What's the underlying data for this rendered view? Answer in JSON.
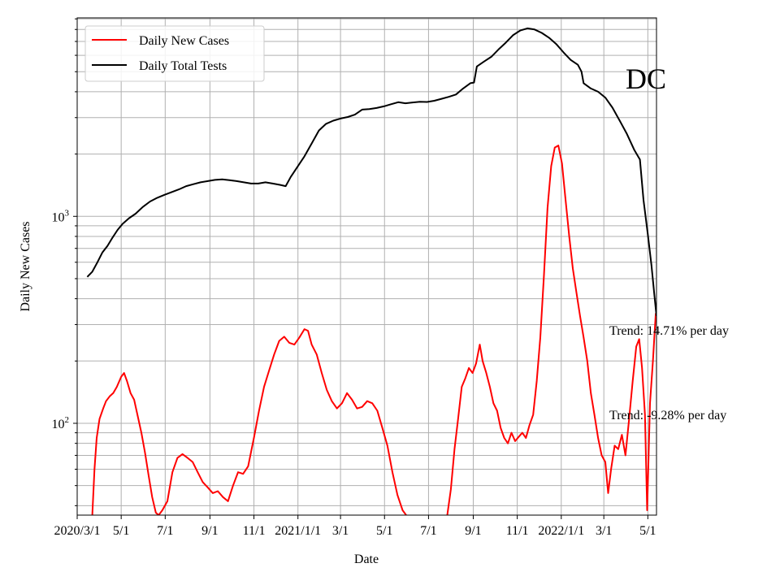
{
  "chart_data": {
    "type": "line",
    "title": "",
    "xlabel": "Date",
    "ylabel": "Daily New Cases",
    "yscale": "log",
    "grid": true,
    "legend_position": "top-left",
    "annotation": "DC",
    "trend_labels": [
      "Trend: 14.71% per day",
      "Trend: -9.28% per day"
    ],
    "x_ticks": [
      {
        "date": "2020-03-01",
        "label": "2020/3/1"
      },
      {
        "date": "2020-05-01",
        "label": "5/1"
      },
      {
        "date": "2020-07-01",
        "label": "7/1"
      },
      {
        "date": "2020-09-01",
        "label": "9/1"
      },
      {
        "date": "2020-11-01",
        "label": "11/1"
      },
      {
        "date": "2021-01-01",
        "label": "2021/1/1"
      },
      {
        "date": "2021-03-01",
        "label": "3/1"
      },
      {
        "date": "2021-05-01",
        "label": "5/1"
      },
      {
        "date": "2021-07-01",
        "label": "7/1"
      },
      {
        "date": "2021-09-01",
        "label": "9/1"
      },
      {
        "date": "2021-11-01",
        "label": "11/1"
      },
      {
        "date": "2022-01-01",
        "label": "2022/1/1"
      },
      {
        "date": "2022-03-01",
        "label": "3/1"
      },
      {
        "date": "2022-05-01",
        "label": "5/1"
      }
    ],
    "y_ticks": [
      {
        "value": 100,
        "base": "10",
        "exp": "2"
      },
      {
        "value": 1000,
        "base": "10",
        "exp": "3"
      }
    ],
    "xlim": [
      "2020-03-01",
      "2022-05-13"
    ],
    "ylim": [
      36,
      9100
    ],
    "series": [
      {
        "name": "Daily New Cases",
        "color": "#ff0000",
        "points": [
          [
            "2020-03-22",
            36
          ],
          [
            "2020-03-25",
            60
          ],
          [
            "2020-03-28",
            85
          ],
          [
            "2020-04-01",
            105
          ],
          [
            "2020-04-06",
            118
          ],
          [
            "2020-04-10",
            128
          ],
          [
            "2020-04-15",
            135
          ],
          [
            "2020-04-20",
            140
          ],
          [
            "2020-04-25",
            150
          ],
          [
            "2020-05-01",
            168
          ],
          [
            "2020-05-05",
            175
          ],
          [
            "2020-05-09",
            160
          ],
          [
            "2020-05-14",
            140
          ],
          [
            "2020-05-19",
            130
          ],
          [
            "2020-05-24",
            108
          ],
          [
            "2020-05-29",
            90
          ],
          [
            "2020-06-03",
            72
          ],
          [
            "2020-06-08",
            56
          ],
          [
            "2020-06-13",
            44
          ],
          [
            "2020-06-18",
            37
          ],
          [
            "2020-06-22",
            36
          ],
          [
            "2020-06-27",
            38
          ],
          [
            "2020-07-04",
            42
          ],
          [
            "2020-07-11",
            58
          ],
          [
            "2020-07-18",
            68
          ],
          [
            "2020-07-25",
            71
          ],
          [
            "2020-08-01",
            68
          ],
          [
            "2020-08-08",
            65
          ],
          [
            "2020-08-15",
            58
          ],
          [
            "2020-08-22",
            52
          ],
          [
            "2020-08-29",
            49
          ],
          [
            "2020-09-05",
            46
          ],
          [
            "2020-09-12",
            47
          ],
          [
            "2020-09-19",
            44
          ],
          [
            "2020-09-26",
            42
          ],
          [
            "2020-10-03",
            50
          ],
          [
            "2020-10-10",
            58
          ],
          [
            "2020-10-17",
            57
          ],
          [
            "2020-10-24",
            62
          ],
          [
            "2020-11-01",
            85
          ],
          [
            "2020-11-08",
            115
          ],
          [
            "2020-11-15",
            150
          ],
          [
            "2020-11-22",
            180
          ],
          [
            "2020-11-29",
            215
          ],
          [
            "2020-12-06",
            250
          ],
          [
            "2020-12-13",
            262
          ],
          [
            "2020-12-20",
            245
          ],
          [
            "2020-12-27",
            240
          ],
          [
            "2021-01-03",
            260
          ],
          [
            "2021-01-10",
            285
          ],
          [
            "2021-01-15",
            280
          ],
          [
            "2021-01-20",
            240
          ],
          [
            "2021-01-27",
            215
          ],
          [
            "2021-02-03",
            175
          ],
          [
            "2021-02-10",
            145
          ],
          [
            "2021-02-17",
            128
          ],
          [
            "2021-02-24",
            118
          ],
          [
            "2021-03-03",
            125
          ],
          [
            "2021-03-10",
            140
          ],
          [
            "2021-03-17",
            130
          ],
          [
            "2021-03-24",
            118
          ],
          [
            "2021-03-31",
            120
          ],
          [
            "2021-04-07",
            128
          ],
          [
            "2021-04-14",
            125
          ],
          [
            "2021-04-21",
            115
          ],
          [
            "2021-04-28",
            95
          ],
          [
            "2021-05-05",
            78
          ],
          [
            "2021-05-12",
            58
          ],
          [
            "2021-05-19",
            45
          ],
          [
            "2021-05-26",
            38
          ],
          [
            "2021-05-31",
            36
          ],
          [
            "2021-07-27",
            36
          ],
          [
            "2021-08-01",
            48
          ],
          [
            "2021-08-06",
            75
          ],
          [
            "2021-08-11",
            105
          ],
          [
            "2021-08-16",
            150
          ],
          [
            "2021-08-21",
            165
          ],
          [
            "2021-08-26",
            185
          ],
          [
            "2021-08-31",
            175
          ],
          [
            "2021-09-05",
            195
          ],
          [
            "2021-09-10",
            240
          ],
          [
            "2021-09-14",
            200
          ],
          [
            "2021-09-19",
            175
          ],
          [
            "2021-09-24",
            150
          ],
          [
            "2021-09-29",
            125
          ],
          [
            "2021-10-04",
            115
          ],
          [
            "2021-10-09",
            95
          ],
          [
            "2021-10-14",
            85
          ],
          [
            "2021-10-19",
            80
          ],
          [
            "2021-10-24",
            90
          ],
          [
            "2021-10-29",
            82
          ],
          [
            "2021-11-03",
            86
          ],
          [
            "2021-11-08",
            90
          ],
          [
            "2021-11-13",
            85
          ],
          [
            "2021-11-18",
            98
          ],
          [
            "2021-11-23",
            110
          ],
          [
            "2021-11-28",
            160
          ],
          [
            "2021-12-03",
            260
          ],
          [
            "2021-12-08",
            520
          ],
          [
            "2021-12-13",
            1100
          ],
          [
            "2021-12-18",
            1750
          ],
          [
            "2021-12-23",
            2150
          ],
          [
            "2021-12-28",
            2200
          ],
          [
            "2022-01-02",
            1800
          ],
          [
            "2022-01-07",
            1200
          ],
          [
            "2022-01-12",
            800
          ],
          [
            "2022-01-17",
            560
          ],
          [
            "2022-01-22",
            430
          ],
          [
            "2022-01-27",
            330
          ],
          [
            "2022-02-01",
            260
          ],
          [
            "2022-02-06",
            200
          ],
          [
            "2022-02-11",
            140
          ],
          [
            "2022-02-16",
            110
          ],
          [
            "2022-02-21",
            85
          ],
          [
            "2022-02-26",
            70
          ],
          [
            "2022-03-03",
            65
          ],
          [
            "2022-03-07",
            46
          ],
          [
            "2022-03-11",
            60
          ],
          [
            "2022-03-16",
            78
          ],
          [
            "2022-03-21",
            75
          ],
          [
            "2022-03-26",
            88
          ],
          [
            "2022-03-31",
            70
          ],
          [
            "2022-04-05",
            105
          ],
          [
            "2022-04-10",
            160
          ],
          [
            "2022-04-15",
            235
          ],
          [
            "2022-04-19",
            255
          ],
          [
            "2022-04-23",
            185
          ],
          [
            "2022-04-27",
            110
          ],
          [
            "2022-04-30",
            38
          ],
          [
            "2022-05-04",
            125
          ],
          [
            "2022-05-08",
            200
          ],
          [
            "2022-05-12",
            340
          ]
        ]
      },
      {
        "name": "Daily Total Tests",
        "color": "#000000",
        "points": [
          [
            "2020-03-15",
            510
          ],
          [
            "2020-03-22",
            540
          ],
          [
            "2020-03-29",
            600
          ],
          [
            "2020-04-05",
            670
          ],
          [
            "2020-04-12",
            720
          ],
          [
            "2020-04-19",
            790
          ],
          [
            "2020-04-26",
            860
          ],
          [
            "2020-05-03",
            920
          ],
          [
            "2020-05-12",
            980
          ],
          [
            "2020-05-21",
            1030
          ],
          [
            "2020-05-31",
            1110
          ],
          [
            "2020-06-10",
            1180
          ],
          [
            "2020-06-20",
            1230
          ],
          [
            "2020-06-30",
            1270
          ],
          [
            "2020-07-10",
            1310
          ],
          [
            "2020-07-20",
            1350
          ],
          [
            "2020-07-30",
            1400
          ],
          [
            "2020-08-09",
            1430
          ],
          [
            "2020-08-19",
            1460
          ],
          [
            "2020-08-29",
            1480
          ],
          [
            "2020-09-08",
            1500
          ],
          [
            "2020-09-18",
            1510
          ],
          [
            "2020-09-28",
            1495
          ],
          [
            "2020-10-08",
            1480
          ],
          [
            "2020-10-18",
            1460
          ],
          [
            "2020-10-28",
            1440
          ],
          [
            "2020-11-07",
            1440
          ],
          [
            "2020-11-17",
            1460
          ],
          [
            "2020-11-27",
            1440
          ],
          [
            "2020-12-07",
            1420
          ],
          [
            "2020-12-15",
            1400
          ],
          [
            "2020-12-22",
            1550
          ],
          [
            "2021-01-01",
            1750
          ],
          [
            "2021-01-10",
            1950
          ],
          [
            "2021-01-20",
            2250
          ],
          [
            "2021-01-30",
            2600
          ],
          [
            "2021-02-09",
            2800
          ],
          [
            "2021-02-19",
            2900
          ],
          [
            "2021-03-01",
            2970
          ],
          [
            "2021-03-11",
            3020
          ],
          [
            "2021-03-21",
            3100
          ],
          [
            "2021-03-31",
            3280
          ],
          [
            "2021-04-10",
            3300
          ],
          [
            "2021-04-20",
            3340
          ],
          [
            "2021-04-30",
            3400
          ],
          [
            "2021-05-10",
            3480
          ],
          [
            "2021-05-20",
            3560
          ],
          [
            "2021-05-30",
            3520
          ],
          [
            "2021-06-09",
            3550
          ],
          [
            "2021-06-19",
            3580
          ],
          [
            "2021-06-29",
            3570
          ],
          [
            "2021-07-09",
            3620
          ],
          [
            "2021-07-19",
            3700
          ],
          [
            "2021-07-29",
            3780
          ],
          [
            "2021-08-08",
            3880
          ],
          [
            "2021-08-18",
            4150
          ],
          [
            "2021-08-28",
            4400
          ],
          [
            "2021-09-02",
            4430
          ],
          [
            "2021-09-06",
            5300
          ],
          [
            "2021-09-16",
            5600
          ],
          [
            "2021-09-26",
            5900
          ],
          [
            "2021-10-06",
            6400
          ],
          [
            "2021-10-16",
            6900
          ],
          [
            "2021-10-26",
            7500
          ],
          [
            "2021-11-05",
            7900
          ],
          [
            "2021-11-15",
            8100
          ],
          [
            "2021-11-25",
            8000
          ],
          [
            "2021-12-05",
            7700
          ],
          [
            "2021-12-15",
            7300
          ],
          [
            "2021-12-25",
            6800
          ],
          [
            "2022-01-04",
            6200
          ],
          [
            "2022-01-14",
            5700
          ],
          [
            "2022-01-24",
            5400
          ],
          [
            "2022-01-29",
            5000
          ],
          [
            "2022-02-01",
            4400
          ],
          [
            "2022-02-11",
            4150
          ],
          [
            "2022-02-21",
            4000
          ],
          [
            "2022-03-03",
            3750
          ],
          [
            "2022-03-13",
            3350
          ],
          [
            "2022-03-23",
            2900
          ],
          [
            "2022-04-02",
            2500
          ],
          [
            "2022-04-12",
            2100
          ],
          [
            "2022-04-20",
            1880
          ],
          [
            "2022-04-25",
            1200
          ],
          [
            "2022-05-01",
            820
          ],
          [
            "2022-05-06",
            580
          ],
          [
            "2022-05-10",
            420
          ],
          [
            "2022-05-13",
            330
          ]
        ]
      }
    ]
  }
}
